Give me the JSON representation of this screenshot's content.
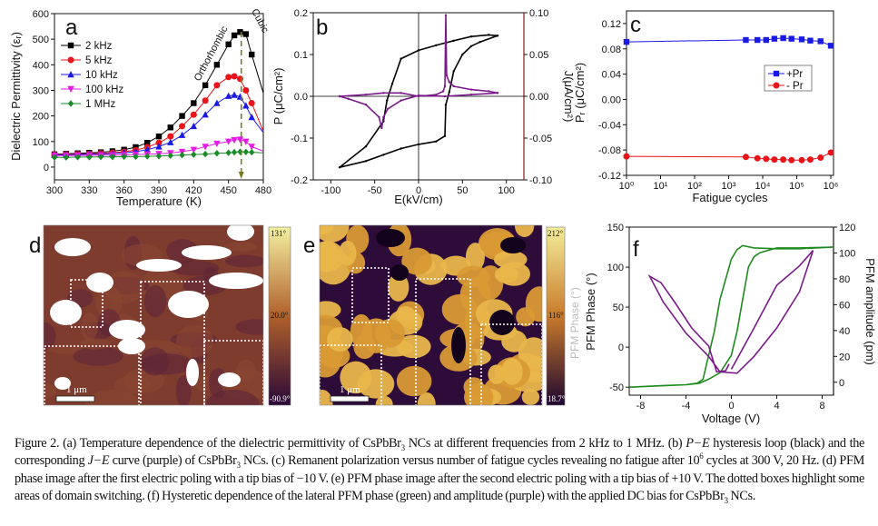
{
  "figure": {
    "panel_labels": {
      "a": "a",
      "b": "b",
      "c": "c",
      "d": "d",
      "e": "e",
      "f": "f"
    },
    "caption": [
      {
        "t": "Figure 2. (a) Temperature dependence of the dielectric permittivity of CsPbBr"
      },
      {
        "t": "3",
        "sub": true
      },
      {
        "t": " NCs at different frequencies from 2 kHz to 1 MHz. (b) "
      },
      {
        "t": "P−E",
        "i": true
      },
      {
        "t": " hysteresis loop (black) and the corresponding "
      },
      {
        "t": "J−E",
        "i": true
      },
      {
        "t": " curve (purple) of CsPbBr"
      },
      {
        "t": "3",
        "sub": true
      },
      {
        "t": " NCs. (c) Remanent polarization versus number of fatigue cycles revealing no fatigue after 10"
      },
      {
        "t": "6",
        "sup": true
      },
      {
        "t": " cycles at 300 V, 20 Hz. (d) PFM phase image after the first electric poling with a tip bias of −10 V. (e) PFM phase image after the second electric poling with a tip bias of +10 V. The dotted boxes highlight some areas of domain switching. (f) Hysteretic dependence of the lateral PFM phase (green) and amplitude (purple) with the applied DC bias for CsPbBr"
      },
      {
        "t": "3",
        "sub": true
      },
      {
        "t": " NCs."
      }
    ],
    "panel_d": {
      "colorbar_labels": [
        "131°",
        "20.0°",
        "-90.9°"
      ],
      "scale_bar": "1 μm",
      "colors": [
        "#f4f0a0",
        "#b0602a",
        "#2a0838"
      ]
    },
    "panel_e": {
      "colorbar_labels": [
        "212°",
        "116°",
        "18.7°"
      ],
      "scale_bar": "1 μm",
      "side_label": "PFM Phase (°)",
      "colors": [
        "#f4ee9a",
        "#c87a2a",
        "#1e0630"
      ]
    }
  },
  "chart_data": [
    {
      "id": "a",
      "type": "line",
      "title": "",
      "xlabel": "Temperature (K)",
      "ylabel": "Dielectric Permittivity (εᵣ)",
      "xlim": [
        300,
        480
      ],
      "ylim": [
        -50,
        600
      ],
      "xticks": [
        300,
        330,
        360,
        390,
        420,
        450,
        480
      ],
      "xtick_labels": [
        "300",
        "330",
        "360",
        "390",
        "420",
        "450",
        "480"
      ],
      "yticks": [
        0,
        100,
        200,
        300,
        400,
        500,
        600
      ],
      "ytick_labels": [
        "0",
        "100",
        "200",
        "300",
        "400",
        "500",
        "600"
      ],
      "legend": "top-left",
      "annotations": [
        "Orthorhombic",
        "Cubic"
      ],
      "transition_temperature": 461,
      "x": [
        300,
        310,
        320,
        330,
        340,
        350,
        360,
        370,
        380,
        390,
        400,
        410,
        420,
        430,
        440,
        450,
        455,
        460,
        465,
        470,
        480
      ],
      "series": [
        {
          "name": "2 kHz",
          "color": "#000000",
          "marker": "square",
          "values": [
            50,
            52,
            54,
            56,
            58,
            62,
            68,
            78,
            95,
            120,
            155,
            200,
            250,
            320,
            400,
            480,
            515,
            528,
            520,
            440,
            290
          ]
        },
        {
          "name": "5 kHz",
          "color": "#e8141a",
          "marker": "circle",
          "values": [
            48,
            50,
            51,
            52,
            54,
            56,
            60,
            66,
            78,
            95,
            120,
            160,
            205,
            260,
            320,
            352,
            355,
            345,
            300,
            250,
            140
          ]
        },
        {
          "name": "10 kHz",
          "color": "#1a1ae6",
          "marker": "triangle-up",
          "values": [
            47,
            48,
            49,
            50,
            51,
            53,
            56,
            60,
            68,
            80,
            97,
            125,
            160,
            205,
            250,
            278,
            282,
            275,
            240,
            195,
            135
          ]
        },
        {
          "name": "100 kHz",
          "color": "#e61ae6",
          "marker": "triangle-down",
          "values": [
            45,
            45,
            46,
            46,
            47,
            47,
            48,
            49,
            50,
            52,
            55,
            60,
            68,
            80,
            92,
            100,
            106,
            108,
            100,
            80,
            62
          ]
        },
        {
          "name": "1 MHz",
          "color": "#1a8a2a",
          "marker": "diamond",
          "values": [
            38,
            38,
            39,
            39,
            40,
            40,
            41,
            41,
            42,
            43,
            45,
            47,
            49,
            51,
            54,
            56,
            58,
            60,
            59,
            58,
            56
          ]
        }
      ]
    },
    {
      "id": "b",
      "type": "line",
      "title": "",
      "xlabel": "E(kV/cm)",
      "ylabel": "P (μC/cm²)",
      "y2label": "J(μA/cm²)",
      "xlim": [
        -120,
        120
      ],
      "ylim": [
        -0.2,
        0.2
      ],
      "y2lim": [
        -0.1,
        0.1
      ],
      "xticks": [
        -100,
        -50,
        0,
        50,
        100
      ],
      "xtick_labels": [
        "-100",
        "-50",
        "0",
        "50",
        "100"
      ],
      "yticks": [
        -0.2,
        -0.1,
        0,
        0.1,
        0.2
      ],
      "ytick_labels": [
        "-0.2",
        "-0.1",
        "0.0",
        "0.1",
        "0.2"
      ],
      "y2ticks": [
        -0.1,
        -0.05,
        0,
        0.05,
        0.1
      ],
      "y2tick_labels": [
        "-0.10",
        "-0.05",
        "0.00",
        "0.05",
        "0.10"
      ],
      "series": [
        {
          "name": "P-E hysteresis loop",
          "color": "#000000",
          "axis": "left",
          "x": [
            90,
            80,
            60,
            40,
            20,
            0,
            -20,
            -30,
            -36,
            -40,
            -60,
            -90,
            -60,
            -40,
            -20,
            0,
            20,
            30,
            31,
            35,
            40,
            50,
            60,
            70,
            90
          ],
          "values": [
            0.145,
            0.147,
            0.143,
            0.133,
            0.122,
            0.11,
            0.09,
            0.03,
            -0.01,
            -0.06,
            -0.12,
            -0.17,
            -0.155,
            -0.14,
            -0.125,
            -0.115,
            -0.108,
            -0.095,
            -0.02,
            0.01,
            0.06,
            0.1,
            0.12,
            0.13,
            0.145
          ]
        },
        {
          "name": "J-E curve",
          "color": "#7a1a8a",
          "axis": "right",
          "x": [
            -90,
            -60,
            -40,
            -20,
            0,
            20,
            28,
            30,
            31,
            32,
            35,
            40,
            60,
            80,
            90,
            90,
            60,
            30,
            0,
            -20,
            -35,
            -40,
            -42,
            -45,
            -60,
            -80,
            -90
          ],
          "values": [
            0,
            0.002,
            0.004,
            0.004,
            0,
            0.002,
            0.006,
            0.012,
            0.097,
            0.025,
            0.017,
            0.012,
            0.008,
            0.006,
            0.004,
            0.004,
            0.002,
            0,
            0.001,
            -0.005,
            -0.015,
            -0.025,
            -0.038,
            -0.025,
            -0.01,
            -0.003,
            0
          ]
        }
      ]
    },
    {
      "id": "c",
      "type": "line",
      "title": "",
      "xlabel": "Fatigue cycles",
      "ylabel": "Pᵣ (μC/cm²)",
      "xscale": "log",
      "xlim": [
        1,
        1200000
      ],
      "ylim": [
        -0.12,
        0.14
      ],
      "xticks": [
        1,
        10,
        100,
        1000,
        10000,
        100000,
        1000000
      ],
      "xtick_labels": [
        "10⁰",
        "10¹",
        "10²",
        "10³",
        "10⁴",
        "10⁵",
        "10⁶"
      ],
      "yticks": [
        -0.12,
        -0.08,
        -0.04,
        0,
        0.04,
        0.08,
        0.12
      ],
      "ytick_labels": [
        "-0.12",
        "-0.08",
        "-0.04",
        "0.00",
        "0.04",
        "0.08",
        "0.12"
      ],
      "legend": "right",
      "x": [
        1,
        3200,
        7000,
        12600,
        22000,
        40000,
        70000,
        140000,
        250000,
        500000,
        1000000
      ],
      "series": [
        {
          "name": "+Pr",
          "color": "#1a1ae6",
          "marker": "square",
          "values": [
            0.091,
            0.094,
            0.094,
            0.094,
            0.096,
            0.097,
            0.096,
            0.095,
            0.093,
            0.092,
            0.085
          ]
        },
        {
          "name": "- Pr",
          "color": "#e8141a",
          "marker": "circle",
          "values": [
            -0.09,
            -0.091,
            -0.093,
            -0.094,
            -0.095,
            -0.095,
            -0.096,
            -0.096,
            -0.095,
            -0.092,
            -0.084
          ]
        }
      ]
    },
    {
      "id": "f",
      "type": "line",
      "title": "",
      "xlabel": "Voltage (V)",
      "ylabel": "PFM Phase (°)",
      "y2label": "PFM amplitude (pm)",
      "xlim": [
        -9,
        9
      ],
      "ylim": [
        -60,
        150
      ],
      "y2lim": [
        -10,
        120
      ],
      "xticks": [
        -8,
        -4,
        0,
        4,
        8
      ],
      "xtick_labels": [
        "-8",
        "-4",
        "0",
        "4",
        "8"
      ],
      "yticks": [
        -50,
        0,
        50,
        100,
        150
      ],
      "ytick_labels": [
        "-50",
        "0",
        "50",
        "100",
        "150"
      ],
      "y2ticks": [
        0,
        20,
        40,
        60,
        80,
        100,
        120
      ],
      "y2tick_labels": [
        "0",
        "20",
        "40",
        "60",
        "80",
        "100",
        "120"
      ],
      "series": [
        {
          "name": "PFM phase",
          "color": "#1f8a1f",
          "axis": "left",
          "x": [
            -9,
            -6,
            -4,
            -3,
            -2.5,
            -2,
            -1.5,
            -1,
            0,
            0.5,
            1,
            2,
            4,
            6,
            9,
            6,
            4,
            2.5,
            2,
            1.5,
            1,
            0.5,
            0,
            -1,
            -2,
            -2.8,
            -4,
            -9
          ],
          "values": [
            -50,
            -48,
            -47,
            -45,
            -40,
            -10,
            20,
            60,
            110,
            122,
            127,
            124,
            123,
            123,
            125,
            124,
            124,
            118,
            113,
            100,
            60,
            20,
            -10,
            -32,
            -40,
            -45,
            -47,
            -50
          ]
        },
        {
          "name": "PFM amplitude",
          "color": "#7a1a8a",
          "axis": "right",
          "x": [
            0,
            2,
            4,
            6,
            7.2,
            6,
            4,
            2,
            0.5,
            -1,
            -2,
            -4,
            -6,
            -7.2,
            -6.2,
            -5,
            -3.5,
            -2,
            -1.3,
            -0.5,
            -0.2
          ],
          "values": [
            10,
            42,
            75,
            90,
            102,
            70,
            42,
            20,
            7,
            8,
            20,
            38,
            62,
            82,
            77,
            62,
            42,
            28,
            8,
            9,
            14
          ]
        }
      ]
    }
  ]
}
